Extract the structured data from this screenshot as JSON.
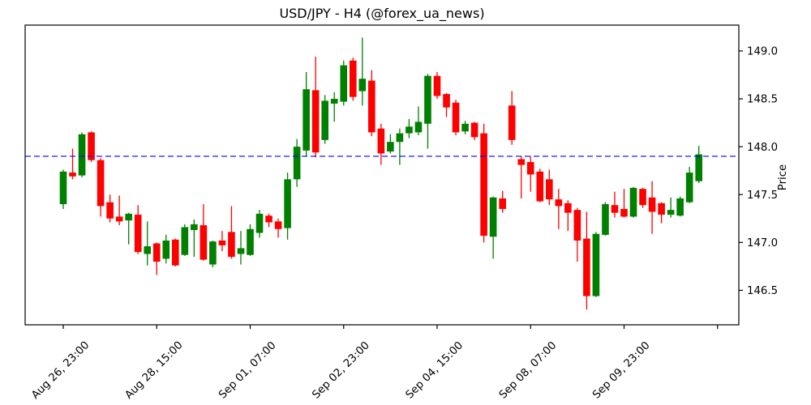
{
  "chart_data": {
    "type": "candlestick",
    "title": "USD/JPY - H4 (@forex_ua_news)",
    "ylabel": "Price",
    "ylabel_side": "right",
    "grid": false,
    "background": "#ffffff",
    "frame_color": "#000000",
    "ylim": [
      146.14,
      149.27
    ],
    "y_ticks": [
      {
        "value": 149.0,
        "label": "149.0"
      },
      {
        "value": 148.5,
        "label": "148.5"
      },
      {
        "value": 148.0,
        "label": "148.0"
      },
      {
        "value": 147.5,
        "label": "147.5"
      },
      {
        "value": 147.0,
        "label": "147.0"
      },
      {
        "value": 146.5,
        "label": "146.5"
      }
    ],
    "x_ticks": [
      {
        "index": 0,
        "label": "Aug 26, 23:00"
      },
      {
        "index": 10,
        "label": "Aug 28, 15:00"
      },
      {
        "index": 20,
        "label": "Sep 01, 07:00"
      },
      {
        "index": 30,
        "label": "Sep 02, 23:00"
      },
      {
        "index": 40,
        "label": "Sep 04, 15:00"
      },
      {
        "index": 50,
        "label": "Sep 08, 07:00"
      },
      {
        "index": 60,
        "label": "Sep 09, 23:00"
      },
      {
        "index": 70,
        "label": ""
      }
    ],
    "x_tick_rotation_deg": 45,
    "hline": {
      "value": 147.9,
      "color": "#0000ff",
      "style": "dashed"
    },
    "colors": {
      "up": "#008000",
      "down": "#ff0000"
    },
    "candles_ohlc": [
      [
        147.4,
        147.76,
        147.35,
        147.74
      ],
      [
        147.73,
        147.98,
        147.66,
        147.69
      ],
      [
        147.7,
        148.15,
        147.68,
        148.13
      ],
      [
        148.15,
        148.16,
        147.84,
        147.86
      ],
      [
        147.86,
        147.88,
        147.27,
        147.38
      ],
      [
        147.42,
        147.5,
        147.21,
        147.25
      ],
      [
        147.27,
        147.49,
        147.18,
        147.22
      ],
      [
        147.23,
        147.31,
        146.98,
        147.3
      ],
      [
        147.29,
        147.39,
        146.88,
        146.9
      ],
      [
        146.88,
        147.22,
        146.76,
        146.96
      ],
      [
        146.99,
        147.0,
        146.66,
        146.8
      ],
      [
        146.83,
        147.08,
        146.78,
        147.02
      ],
      [
        147.03,
        147.04,
        146.75,
        146.76
      ],
      [
        146.87,
        147.19,
        146.86,
        147.16
      ],
      [
        147.13,
        147.24,
        146.85,
        147.19
      ],
      [
        147.18,
        147.4,
        146.81,
        146.82
      ],
      [
        146.77,
        147.02,
        146.74,
        147.01
      ],
      [
        147.02,
        147.12,
        146.91,
        146.97
      ],
      [
        147.11,
        147.38,
        146.83,
        146.85
      ],
      [
        146.88,
        147.12,
        146.77,
        146.94
      ],
      [
        146.87,
        147.19,
        146.86,
        147.14
      ],
      [
        147.1,
        147.34,
        147.05,
        147.3
      ],
      [
        147.28,
        147.3,
        147.16,
        147.21
      ],
      [
        147.22,
        147.25,
        147.05,
        147.14
      ],
      [
        147.15,
        147.73,
        147.03,
        147.66
      ],
      [
        147.66,
        148.08,
        147.58,
        148.0
      ],
      [
        147.96,
        148.78,
        147.9,
        148.6
      ],
      [
        148.59,
        148.94,
        147.89,
        147.94
      ],
      [
        148.07,
        148.54,
        148.03,
        148.48
      ],
      [
        148.45,
        148.57,
        148.26,
        148.5
      ],
      [
        148.47,
        148.9,
        148.43,
        148.85
      ],
      [
        148.9,
        148.93,
        148.48,
        148.52
      ],
      [
        148.58,
        149.14,
        148.43,
        148.71
      ],
      [
        148.69,
        148.8,
        148.11,
        148.15
      ],
      [
        148.19,
        148.24,
        147.81,
        147.93
      ],
      [
        147.95,
        148.13,
        147.93,
        148.05
      ],
      [
        148.05,
        148.19,
        147.81,
        148.14
      ],
      [
        148.14,
        148.29,
        148.09,
        148.21
      ],
      [
        148.15,
        148.42,
        148.12,
        148.26
      ],
      [
        148.24,
        148.76,
        147.98,
        148.74
      ],
      [
        148.74,
        148.78,
        148.5,
        148.53
      ],
      [
        148.55,
        148.56,
        148.31,
        148.41
      ],
      [
        148.46,
        148.49,
        148.12,
        148.15
      ],
      [
        148.16,
        148.27,
        148.13,
        148.24
      ],
      [
        148.25,
        148.26,
        148.07,
        148.1
      ],
      [
        148.14,
        148.24,
        147.0,
        147.07
      ],
      [
        147.06,
        147.48,
        146.83,
        147.47
      ],
      [
        147.46,
        147.54,
        147.31,
        147.35
      ],
      [
        148.43,
        148.58,
        148.02,
        148.07
      ],
      [
        147.87,
        147.9,
        147.46,
        147.81
      ],
      [
        147.84,
        147.9,
        147.53,
        147.71
      ],
      [
        147.74,
        147.77,
        147.42,
        147.43
      ],
      [
        147.66,
        147.76,
        147.39,
        147.45
      ],
      [
        147.45,
        147.56,
        147.14,
        147.38
      ],
      [
        147.41,
        147.44,
        147.12,
        147.31
      ],
      [
        147.34,
        147.36,
        146.8,
        147.02
      ],
      [
        147.04,
        147.32,
        146.3,
        146.44
      ],
      [
        146.44,
        147.11,
        146.43,
        147.09
      ],
      [
        147.08,
        147.42,
        147.07,
        147.4
      ],
      [
        147.39,
        147.53,
        147.26,
        147.31
      ],
      [
        147.35,
        147.56,
        147.26,
        147.27
      ],
      [
        147.27,
        147.58,
        147.26,
        147.57
      ],
      [
        147.56,
        147.57,
        147.36,
        147.39
      ],
      [
        147.47,
        147.64,
        147.09,
        147.32
      ],
      [
        147.41,
        147.42,
        147.2,
        147.29
      ],
      [
        147.29,
        147.47,
        147.26,
        147.34
      ],
      [
        147.28,
        147.48,
        147.27,
        147.46
      ],
      [
        147.42,
        147.79,
        147.41,
        147.73
      ],
      [
        147.64,
        148.01,
        147.62,
        147.92
      ]
    ]
  }
}
